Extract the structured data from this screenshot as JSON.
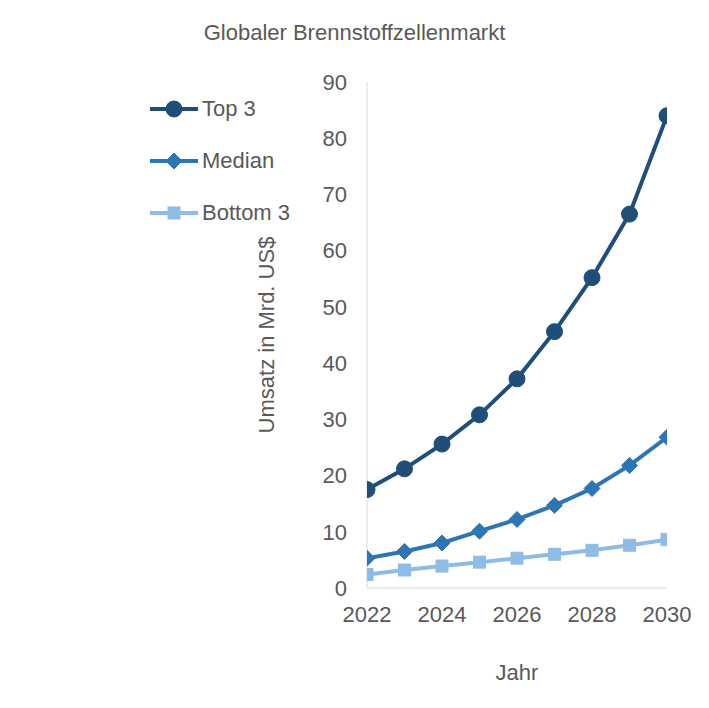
{
  "chart_data": {
    "type": "line",
    "title": "Globaler Brennstoffzellenmarkt",
    "x_label": "Jahr",
    "y_label": "Umsatz in Mrd. US$",
    "x": [
      2022,
      2023,
      2024,
      2025,
      2026,
      2027,
      2028,
      2029,
      2030
    ],
    "xlim": [
      2022,
      2030
    ],
    "xticks": [
      2022,
      2024,
      2026,
      2028,
      2030
    ],
    "ylim": [
      0,
      90
    ],
    "yticks": [
      0,
      10,
      20,
      30,
      40,
      50,
      60,
      70,
      80,
      90
    ],
    "grid": false,
    "legend": "upper left",
    "series": [
      {
        "name": "Top 3",
        "color": "#1f4e79",
        "marker": "circle",
        "values": [
          17.5,
          21.2,
          25.6,
          30.8,
          37.2,
          45.6,
          55.2,
          66.5,
          84.0
        ]
      },
      {
        "name": "Median",
        "color": "#2e75b6",
        "marker": "diamond",
        "values": [
          5.3,
          6.5,
          8.0,
          10.1,
          12.2,
          14.7,
          17.7,
          21.8,
          26.8
        ]
      },
      {
        "name": "Bottom 3",
        "color": "#8fbce6",
        "marker": "square",
        "values": [
          2.4,
          3.2,
          3.9,
          4.6,
          5.3,
          6.0,
          6.7,
          7.6,
          8.6
        ]
      }
    ]
  }
}
